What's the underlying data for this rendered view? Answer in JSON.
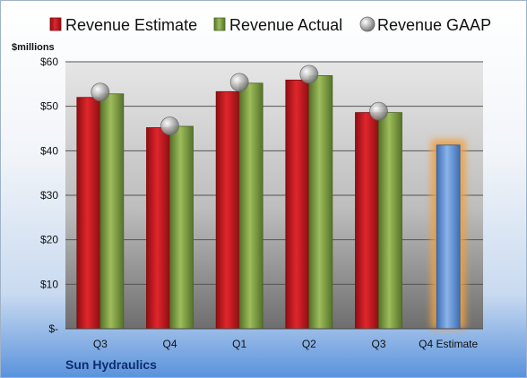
{
  "chart_data": {
    "type": "bar",
    "unit_label": "$millions",
    "categories": [
      "Q3",
      "Q4",
      "Q1",
      "Q2",
      "Q3",
      "Q4 Estimate"
    ],
    "series": [
      {
        "name": "Revenue Estimate",
        "kind": "bar",
        "color": "#c0161c",
        "values": [
          52.0,
          45.2,
          53.3,
          55.9,
          48.6,
          null
        ]
      },
      {
        "name": "Revenue Actual",
        "kind": "bar",
        "color": "#7a9a3a",
        "values": [
          52.8,
          45.5,
          55.2,
          56.9,
          48.6,
          null
        ]
      },
      {
        "name": "Revenue GAAP",
        "kind": "marker",
        "color": "#9a9a9a",
        "values": [
          53.2,
          45.6,
          55.4,
          57.2,
          48.9,
          null
        ]
      }
    ],
    "highlighted_estimate": {
      "category": "Q4 Estimate",
      "value": 41.3,
      "color": "#5b8fd6",
      "glow": "#f0a040"
    },
    "y_ticks": [
      "$-",
      "$10",
      "$20",
      "$30",
      "$40",
      "$50",
      "$60"
    ],
    "ylim": [
      0,
      60
    ],
    "grid": true,
    "legend_position": "top"
  },
  "footer": {
    "company": "Sun Hydraulics"
  }
}
